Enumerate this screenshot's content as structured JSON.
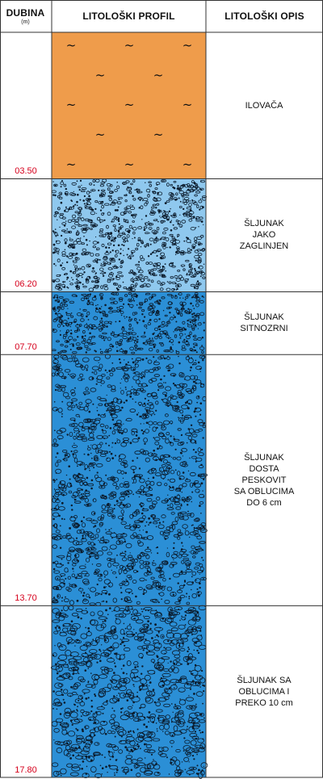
{
  "header": {
    "depth_title": "DUBINA",
    "depth_unit": "(m)",
    "profile_title": "LITOLOŠKI PROFIL",
    "description_title": "LITOLOŠKI OPIS"
  },
  "colors": {
    "clay": "#ef9c4b",
    "gravel_clayey": "#8fc8ee",
    "gravel": "#2b8fd6",
    "depth_text": "#d6001c",
    "grid": "#333333"
  },
  "layers": [
    {
      "top": 0.0,
      "bottom": 3.5,
      "depth_label": "03.50",
      "description": "ILOVAČA",
      "pattern": "clay-tilde",
      "color_key": "clay"
    },
    {
      "top": 3.5,
      "bottom": 6.2,
      "depth_label": "06.20",
      "description": "ŠLJUNAK\nJAKO\nZAGLINJEN",
      "pattern": "gravel-dense",
      "color_key": "gravel_clayey"
    },
    {
      "top": 6.2,
      "bottom": 7.7,
      "depth_label": "07.70",
      "description": "ŠLJUNAK\nSITNOZRNI",
      "pattern": "gravel-dense",
      "color_key": "gravel"
    },
    {
      "top": 7.7,
      "bottom": 13.7,
      "depth_label": "13.70",
      "description": "ŠLJUNAK\nDOSTA\nPESKOVIT\nSA OBLUCIMA\nDO 6 cm",
      "pattern": "gravel-mixed",
      "color_key": "gravel"
    },
    {
      "top": 13.7,
      "bottom": 17.8,
      "depth_label": "17.80",
      "description": "ŠLJUNAK SA\nOBLUCIMA  I\nPREKO 10 cm",
      "pattern": "gravel-large",
      "color_key": "gravel"
    }
  ]
}
